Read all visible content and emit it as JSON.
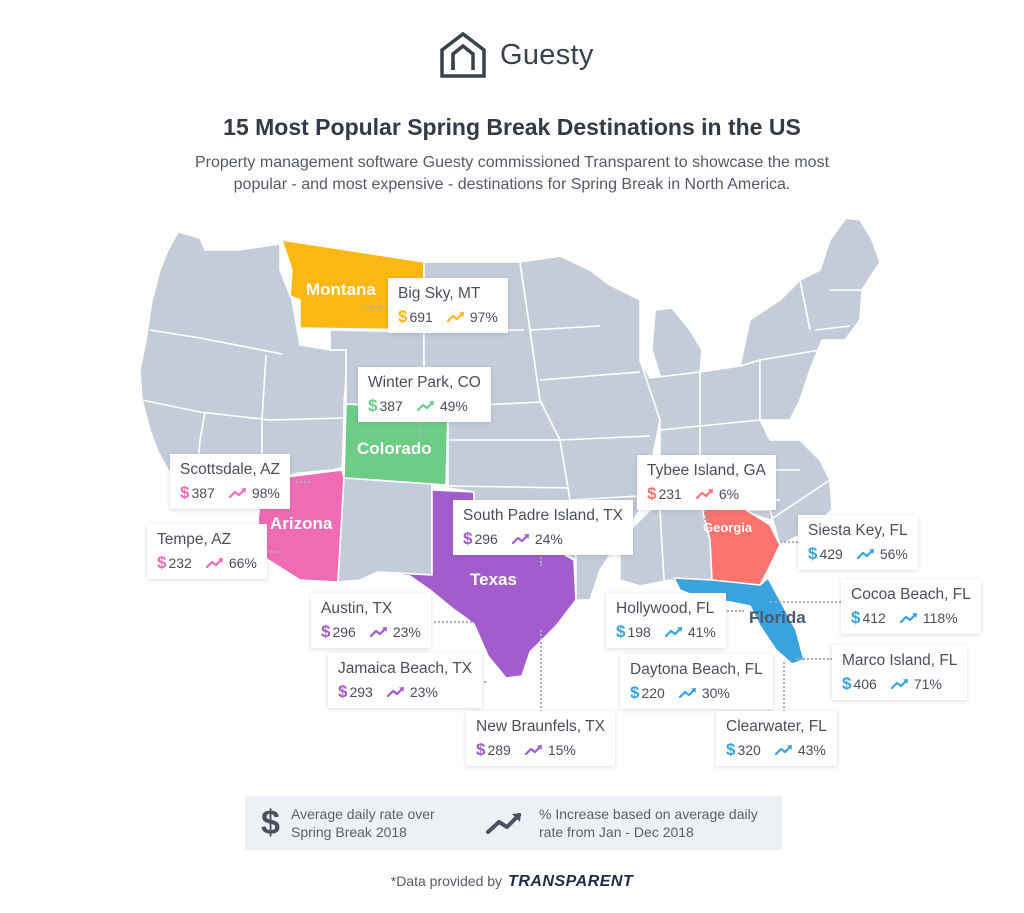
{
  "header": {
    "logo_text": "Guesty",
    "title": "15 Most Popular Spring Break Destinations in the US",
    "subtitle": "Property management software Guesty commissioned Transparent to showcase the most popular - and most expensive - destinations for Spring Break in North America."
  },
  "colors": {
    "base_state": "#c4ccda",
    "montana": "#fbb712",
    "colorado": "#6dcd86",
    "arizona": "#f06bb3",
    "texas": "#a25ccc",
    "georgia": "#fb7470",
    "florida": "#3aa3de"
  },
  "states": {
    "montana": "Montana",
    "colorado": "Colorado",
    "arizona": "Arizona",
    "texas": "Texas",
    "georgia": "Georgia",
    "florida": "Florida"
  },
  "currency_symbol": "$",
  "destinations": [
    {
      "name": "Big Sky, MT",
      "rate": "691",
      "increase": "97%",
      "state": "montana"
    },
    {
      "name": "Winter Park, CO",
      "rate": "387",
      "increase": "49%",
      "state": "colorado"
    },
    {
      "name": "Scottsdale, AZ",
      "rate": "387",
      "increase": "98%",
      "state": "arizona"
    },
    {
      "name": "Tempe, AZ",
      "rate": "232",
      "increase": "66%",
      "state": "arizona"
    },
    {
      "name": "South Padre Island, TX",
      "rate": "296",
      "increase": "24%",
      "state": "texas"
    },
    {
      "name": "Austin, TX",
      "rate": "296",
      "increase": "23%",
      "state": "texas"
    },
    {
      "name": "Jamaica Beach, TX",
      "rate": "293",
      "increase": "23%",
      "state": "texas"
    },
    {
      "name": "New Braunfels, TX",
      "rate": "289",
      "increase": "15%",
      "state": "texas"
    },
    {
      "name": "Tybee Island, GA",
      "rate": "231",
      "increase": "6%",
      "state": "georgia"
    },
    {
      "name": "Siesta Key, FL",
      "rate": "429",
      "increase": "56%",
      "state": "florida"
    },
    {
      "name": "Cocoa Beach, FL",
      "rate": "412",
      "increase": "118%",
      "state": "florida"
    },
    {
      "name": "Hollywood, FL",
      "rate": "198",
      "increase": "41%",
      "state": "florida"
    },
    {
      "name": "Marco Island, FL",
      "rate": "406",
      "increase": "71%",
      "state": "florida"
    },
    {
      "name": "Daytona Beach, FL",
      "rate": "220",
      "increase": "30%",
      "state": "florida"
    },
    {
      "name": "Clearwater, FL",
      "rate": "320",
      "increase": "43%",
      "state": "florida"
    }
  ],
  "legend": {
    "rate_label": "Average daily rate over Spring Break 2018",
    "increase_label": "% Increase based on average daily rate from Jan - Dec 2018"
  },
  "footer": {
    "prefix": "*Data provided by",
    "brand": "TRANSPARENT"
  }
}
